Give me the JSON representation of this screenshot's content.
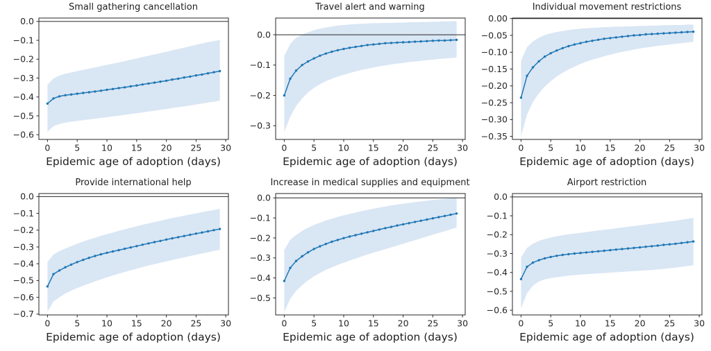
{
  "style": {
    "background": "#ffffff",
    "line_color": "#1f77b4",
    "band_color": "#d9e6f4",
    "axis_color": "#262626",
    "text_color": "#1f1f1f"
  },
  "chart_data": [
    {
      "type": "line",
      "title": "Small gathering cancellation",
      "xlabel": "Epidemic age of adoption (days)",
      "x": [
        0,
        1,
        2,
        3,
        4,
        5,
        6,
        7,
        8,
        9,
        10,
        11,
        12,
        13,
        14,
        15,
        16,
        17,
        18,
        19,
        20,
        21,
        22,
        23,
        24,
        25,
        26,
        27,
        28,
        29
      ],
      "mean": [
        -0.435,
        -0.408,
        -0.397,
        -0.391,
        -0.387,
        -0.383,
        -0.379,
        -0.375,
        -0.371,
        -0.367,
        -0.362,
        -0.358,
        -0.353,
        -0.349,
        -0.344,
        -0.339,
        -0.334,
        -0.329,
        -0.324,
        -0.319,
        -0.314,
        -0.308,
        -0.303,
        -0.297,
        -0.292,
        -0.286,
        -0.281,
        -0.275,
        -0.269,
        -0.263
      ],
      "band_upper": [
        -0.335,
        -0.302,
        -0.287,
        -0.277,
        -0.27,
        -0.263,
        -0.257,
        -0.25,
        -0.244,
        -0.237,
        -0.23,
        -0.224,
        -0.217,
        -0.21,
        -0.203,
        -0.196,
        -0.189,
        -0.182,
        -0.175,
        -0.168,
        -0.161,
        -0.153,
        -0.146,
        -0.139,
        -0.131,
        -0.124,
        -0.117,
        -0.11,
        -0.104,
        -0.098
      ],
      "band_lower": [
        -0.585,
        -0.555,
        -0.543,
        -0.536,
        -0.531,
        -0.527,
        -0.523,
        -0.519,
        -0.515,
        -0.511,
        -0.507,
        -0.503,
        -0.499,
        -0.495,
        -0.49,
        -0.486,
        -0.482,
        -0.477,
        -0.473,
        -0.468,
        -0.464,
        -0.459,
        -0.454,
        -0.45,
        -0.445,
        -0.44,
        -0.435,
        -0.43,
        -0.425,
        -0.42
      ],
      "ylim": [
        -0.625,
        0.018
      ],
      "yticks": [
        0,
        -0.1,
        -0.2,
        -0.3,
        -0.4,
        -0.5,
        -0.6
      ],
      "ytick_labels": [
        "0.0",
        "−0.1",
        "−0.2",
        "−0.3",
        "−0.4",
        "−0.5",
        "−0.6"
      ],
      "xlim": [
        -1.45,
        30.45
      ],
      "xticks": [
        0,
        5,
        10,
        15,
        20,
        25,
        30
      ],
      "xtick_labels": [
        "0",
        "5",
        "10",
        "15",
        "20",
        "25",
        "30"
      ],
      "zero_line": true
    },
    {
      "type": "line",
      "title": "Travel alert and warning",
      "xlabel": "Epidemic age of adoption (days)",
      "x": [
        0,
        1,
        2,
        3,
        4,
        5,
        6,
        7,
        8,
        9,
        10,
        11,
        12,
        13,
        14,
        15,
        16,
        17,
        18,
        19,
        20,
        21,
        22,
        23,
        24,
        25,
        26,
        27,
        28,
        29
      ],
      "mean": [
        -0.2,
        -0.145,
        -0.118,
        -0.1,
        -0.088,
        -0.078,
        -0.069,
        -0.062,
        -0.056,
        -0.051,
        -0.047,
        -0.043,
        -0.04,
        -0.037,
        -0.034,
        -0.032,
        -0.03,
        -0.028,
        -0.027,
        -0.026,
        -0.025,
        -0.024,
        -0.023,
        -0.022,
        -0.021,
        -0.02,
        -0.019,
        -0.019,
        -0.018,
        -0.017
      ],
      "band_upper": [
        -0.07,
        -0.03,
        -0.01,
        0.0,
        0.008,
        0.015,
        0.02,
        0.024,
        0.027,
        0.03,
        0.032,
        0.034,
        0.035,
        0.036,
        0.037,
        0.038,
        0.038,
        0.039,
        0.039,
        0.04,
        0.04,
        0.041,
        0.041,
        0.042,
        0.042,
        0.043,
        0.043,
        0.044,
        0.044,
        0.045
      ],
      "band_lower": [
        -0.32,
        -0.27,
        -0.235,
        -0.21,
        -0.19,
        -0.175,
        -0.163,
        -0.153,
        -0.145,
        -0.138,
        -0.132,
        -0.126,
        -0.121,
        -0.116,
        -0.112,
        -0.108,
        -0.104,
        -0.101,
        -0.098,
        -0.095,
        -0.093,
        -0.09,
        -0.088,
        -0.086,
        -0.084,
        -0.082,
        -0.08,
        -0.078,
        -0.077,
        -0.075
      ],
      "ylim": [
        -0.345,
        0.055
      ],
      "yticks": [
        0,
        -0.1,
        -0.2,
        -0.3
      ],
      "ytick_labels": [
        "0.0",
        "−0.1",
        "−0.2",
        "−0.3"
      ],
      "xlim": [
        -1.45,
        30.45
      ],
      "xticks": [
        0,
        5,
        10,
        15,
        20,
        25,
        30
      ],
      "xtick_labels": [
        "0",
        "5",
        "10",
        "15",
        "20",
        "25",
        "30"
      ],
      "zero_line": true
    },
    {
      "type": "line",
      "title": "Individual movement restrictions",
      "xlabel": "Epidemic age of adoption (days)",
      "x": [
        0,
        1,
        2,
        3,
        4,
        5,
        6,
        7,
        8,
        9,
        10,
        11,
        12,
        13,
        14,
        15,
        16,
        17,
        18,
        19,
        20,
        21,
        22,
        23,
        24,
        25,
        26,
        27,
        28,
        29
      ],
      "mean": [
        -0.235,
        -0.17,
        -0.145,
        -0.127,
        -0.113,
        -0.103,
        -0.095,
        -0.088,
        -0.082,
        -0.077,
        -0.073,
        -0.069,
        -0.066,
        -0.063,
        -0.06,
        -0.058,
        -0.056,
        -0.054,
        -0.052,
        -0.05,
        -0.049,
        -0.047,
        -0.046,
        -0.045,
        -0.044,
        -0.043,
        -0.042,
        -0.041,
        -0.04,
        -0.039
      ],
      "band_upper": [
        -0.125,
        -0.085,
        -0.068,
        -0.057,
        -0.049,
        -0.044,
        -0.04,
        -0.037,
        -0.034,
        -0.032,
        -0.03,
        -0.029,
        -0.028,
        -0.027,
        -0.026,
        -0.025,
        -0.024,
        -0.024,
        -0.023,
        -0.023,
        -0.022,
        -0.022,
        -0.021,
        -0.021,
        -0.02,
        -0.02,
        -0.019,
        -0.019,
        -0.018,
        -0.018
      ],
      "band_lower": [
        -0.35,
        -0.285,
        -0.248,
        -0.222,
        -0.202,
        -0.186,
        -0.172,
        -0.161,
        -0.151,
        -0.143,
        -0.135,
        -0.128,
        -0.122,
        -0.117,
        -0.112,
        -0.107,
        -0.103,
        -0.099,
        -0.096,
        -0.092,
        -0.089,
        -0.086,
        -0.084,
        -0.081,
        -0.079,
        -0.077,
        -0.075,
        -0.073,
        -0.071,
        -0.069
      ],
      "ylim": [
        -0.359,
        0.0015
      ],
      "yticks": [
        0,
        -0.05,
        -0.1,
        -0.15,
        -0.2,
        -0.25,
        -0.3,
        -0.35
      ],
      "ytick_labels": [
        "0.00",
        "−0.05",
        "−0.10",
        "−0.15",
        "−0.20",
        "−0.25",
        "−0.30",
        "−0.35"
      ],
      "xlim": [
        -1.45,
        30.45
      ],
      "xticks": [
        0,
        5,
        10,
        15,
        20,
        25,
        30
      ],
      "xtick_labels": [
        "0",
        "5",
        "10",
        "15",
        "20",
        "25",
        "30"
      ],
      "zero_line": true
    },
    {
      "type": "line",
      "title": "Provide international help",
      "xlabel": "Epidemic age of adoption (days)",
      "x": [
        0,
        1,
        2,
        3,
        4,
        5,
        6,
        7,
        8,
        9,
        10,
        11,
        12,
        13,
        14,
        15,
        16,
        17,
        18,
        19,
        20,
        21,
        22,
        23,
        24,
        25,
        26,
        27,
        28,
        29
      ],
      "mean": [
        -0.535,
        -0.462,
        -0.44,
        -0.421,
        -0.405,
        -0.39,
        -0.377,
        -0.365,
        -0.354,
        -0.344,
        -0.335,
        -0.327,
        -0.319,
        -0.311,
        -0.303,
        -0.295,
        -0.287,
        -0.279,
        -0.271,
        -0.264,
        -0.256,
        -0.249,
        -0.242,
        -0.235,
        -0.228,
        -0.221,
        -0.214,
        -0.207,
        -0.2,
        -0.193
      ],
      "band_upper": [
        -0.39,
        -0.345,
        -0.325,
        -0.31,
        -0.295,
        -0.281,
        -0.268,
        -0.256,
        -0.245,
        -0.234,
        -0.224,
        -0.214,
        -0.204,
        -0.195,
        -0.186,
        -0.177,
        -0.168,
        -0.16,
        -0.152,
        -0.144,
        -0.136,
        -0.128,
        -0.121,
        -0.114,
        -0.107,
        -0.1,
        -0.093,
        -0.086,
        -0.08,
        -0.073
      ],
      "band_lower": [
        -0.685,
        -0.625,
        -0.6,
        -0.578,
        -0.56,
        -0.545,
        -0.531,
        -0.518,
        -0.505,
        -0.493,
        -0.481,
        -0.47,
        -0.459,
        -0.449,
        -0.439,
        -0.43,
        -0.42,
        -0.411,
        -0.402,
        -0.394,
        -0.386,
        -0.378,
        -0.37,
        -0.362,
        -0.354,
        -0.347,
        -0.339,
        -0.332,
        -0.324,
        -0.317
      ],
      "ylim": [
        -0.705,
        0.018
      ],
      "yticks": [
        0,
        -0.1,
        -0.2,
        -0.3,
        -0.4,
        -0.5,
        -0.6,
        -0.7
      ],
      "ytick_labels": [
        "0.0",
        "−0.1",
        "−0.2",
        "−0.3",
        "−0.4",
        "−0.5",
        "−0.6",
        "−0.7"
      ],
      "xlim": [
        -1.45,
        30.45
      ],
      "xticks": [
        0,
        5,
        10,
        15,
        20,
        25,
        30
      ],
      "xtick_labels": [
        "0",
        "5",
        "10",
        "15",
        "20",
        "25",
        "30"
      ],
      "zero_line": true
    },
    {
      "type": "line",
      "title": "Increase in medical supplies and equipment",
      "xlabel": "Epidemic age of adoption (days)",
      "x": [
        0,
        1,
        2,
        3,
        4,
        5,
        6,
        7,
        8,
        9,
        10,
        11,
        12,
        13,
        14,
        15,
        16,
        17,
        18,
        19,
        20,
        21,
        22,
        23,
        24,
        25,
        26,
        27,
        28,
        29
      ],
      "mean": [
        -0.415,
        -0.35,
        -0.315,
        -0.292,
        -0.272,
        -0.255,
        -0.242,
        -0.23,
        -0.219,
        -0.21,
        -0.201,
        -0.193,
        -0.186,
        -0.179,
        -0.172,
        -0.165,
        -0.158,
        -0.151,
        -0.145,
        -0.138,
        -0.132,
        -0.126,
        -0.12,
        -0.114,
        -0.108,
        -0.102,
        -0.096,
        -0.09,
        -0.084,
        -0.078
      ],
      "band_upper": [
        -0.26,
        -0.21,
        -0.185,
        -0.165,
        -0.149,
        -0.135,
        -0.124,
        -0.113,
        -0.104,
        -0.095,
        -0.087,
        -0.08,
        -0.073,
        -0.066,
        -0.06,
        -0.054,
        -0.048,
        -0.043,
        -0.038,
        -0.033,
        -0.029,
        -0.025,
        -0.021,
        -0.017,
        -0.014,
        -0.01,
        -0.007,
        -0.005,
        -0.002,
        0.0
      ],
      "band_lower": [
        -0.57,
        -0.505,
        -0.465,
        -0.437,
        -0.412,
        -0.392,
        -0.375,
        -0.36,
        -0.347,
        -0.335,
        -0.324,
        -0.313,
        -0.303,
        -0.293,
        -0.283,
        -0.274,
        -0.265,
        -0.256,
        -0.247,
        -0.238,
        -0.229,
        -0.22,
        -0.211,
        -0.202,
        -0.193,
        -0.184,
        -0.175,
        -0.166,
        -0.157,
        -0.148
      ],
      "ylim": [
        -0.585,
        0.022
      ],
      "yticks": [
        0,
        -0.1,
        -0.2,
        -0.3,
        -0.4,
        -0.5
      ],
      "ytick_labels": [
        "0.0",
        "−0.1",
        "−0.2",
        "−0.3",
        "−0.4",
        "−0.5"
      ],
      "xlim": [
        -1.45,
        30.45
      ],
      "xticks": [
        0,
        5,
        10,
        15,
        20,
        25,
        30
      ],
      "xtick_labels": [
        "0",
        "5",
        "10",
        "15",
        "20",
        "25",
        "30"
      ],
      "zero_line": true
    },
    {
      "type": "line",
      "title": "Airport restriction",
      "xlabel": "Epidemic age of adoption (days)",
      "x": [
        0,
        1,
        2,
        3,
        4,
        5,
        6,
        7,
        8,
        9,
        10,
        11,
        12,
        13,
        14,
        15,
        16,
        17,
        18,
        19,
        20,
        21,
        22,
        23,
        24,
        25,
        26,
        27,
        28,
        29
      ],
      "mean": [
        -0.435,
        -0.37,
        -0.348,
        -0.335,
        -0.325,
        -0.318,
        -0.312,
        -0.307,
        -0.303,
        -0.3,
        -0.297,
        -0.294,
        -0.291,
        -0.288,
        -0.285,
        -0.282,
        -0.279,
        -0.276,
        -0.273,
        -0.27,
        -0.267,
        -0.264,
        -0.261,
        -0.258,
        -0.254,
        -0.251,
        -0.248,
        -0.244,
        -0.24,
        -0.236
      ],
      "band_upper": [
        -0.32,
        -0.27,
        -0.248,
        -0.233,
        -0.223,
        -0.215,
        -0.208,
        -0.203,
        -0.198,
        -0.194,
        -0.19,
        -0.186,
        -0.182,
        -0.178,
        -0.174,
        -0.17,
        -0.166,
        -0.162,
        -0.158,
        -0.154,
        -0.15,
        -0.146,
        -0.142,
        -0.138,
        -0.134,
        -0.13,
        -0.126,
        -0.121,
        -0.116,
        -0.111
      ],
      "band_lower": [
        -0.59,
        -0.51,
        -0.47,
        -0.448,
        -0.437,
        -0.43,
        -0.425,
        -0.421,
        -0.417,
        -0.414,
        -0.411,
        -0.409,
        -0.407,
        -0.405,
        -0.403,
        -0.401,
        -0.399,
        -0.397,
        -0.395,
        -0.393,
        -0.391,
        -0.389,
        -0.387,
        -0.384,
        -0.381,
        -0.378,
        -0.374,
        -0.37,
        -0.366,
        -0.362
      ],
      "ylim": [
        -0.625,
        0.018
      ],
      "yticks": [
        0,
        -0.1,
        -0.2,
        -0.3,
        -0.4,
        -0.5,
        -0.6
      ],
      "ytick_labels": [
        "0.0",
        "−0.1",
        "−0.2",
        "−0.3",
        "−0.4",
        "−0.5",
        "−0.6"
      ],
      "xlim": [
        -1.45,
        30.45
      ],
      "xticks": [
        0,
        5,
        10,
        15,
        20,
        25,
        30
      ],
      "xtick_labels": [
        "0",
        "5",
        "10",
        "15",
        "20",
        "25",
        "30"
      ],
      "zero_line": true
    }
  ]
}
